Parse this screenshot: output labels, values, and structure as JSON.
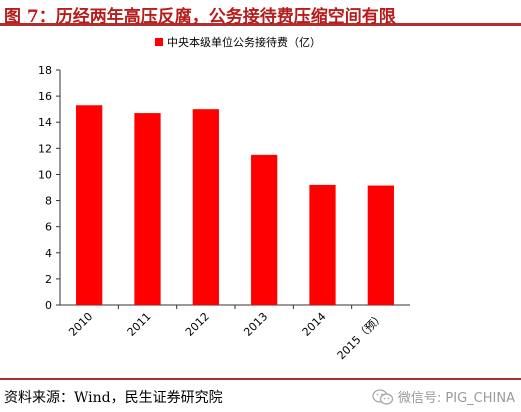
{
  "title": "图 7：历经两年高压反腐，公务接待费压缩空间有限",
  "source": "资料来源：Wind，民生证券研究院",
  "watermark": "微信号: PIG_CHINA",
  "colors": {
    "bar": "#ff0000",
    "title": "#b71c1c",
    "rule": "#b03030"
  },
  "chart_data": {
    "type": "bar",
    "categories": [
      "2010",
      "2011",
      "2012",
      "2013",
      "2014",
      "2015（预）"
    ],
    "series": [
      {
        "name": "中央本级单位公务接待费（亿）",
        "values": [
          15.3,
          14.7,
          15.0,
          11.5,
          9.2,
          9.15
        ]
      }
    ],
    "ylim": [
      0,
      18
    ],
    "yticks": [
      0,
      2,
      4,
      6,
      8,
      10,
      12,
      14,
      16,
      18
    ],
    "legend": "top-left",
    "grid": false
  }
}
